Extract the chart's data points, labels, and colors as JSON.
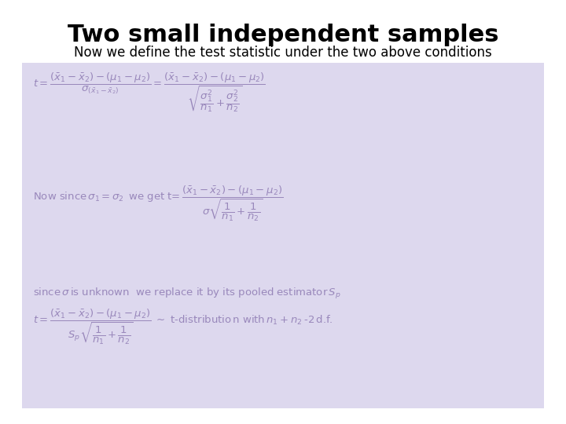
{
  "title": "Two small independent samples",
  "subtitle": "Now we define the test statistic under the two above conditions",
  "title_fontsize": 22,
  "subtitle_fontsize": 12,
  "title_color": "#000000",
  "subtitle_color": "#000000",
  "bg_color": "#ffffff",
  "box_color": "#ddd8ee",
  "formula_color": "#9988bb",
  "formula_fontsize": 9.5
}
